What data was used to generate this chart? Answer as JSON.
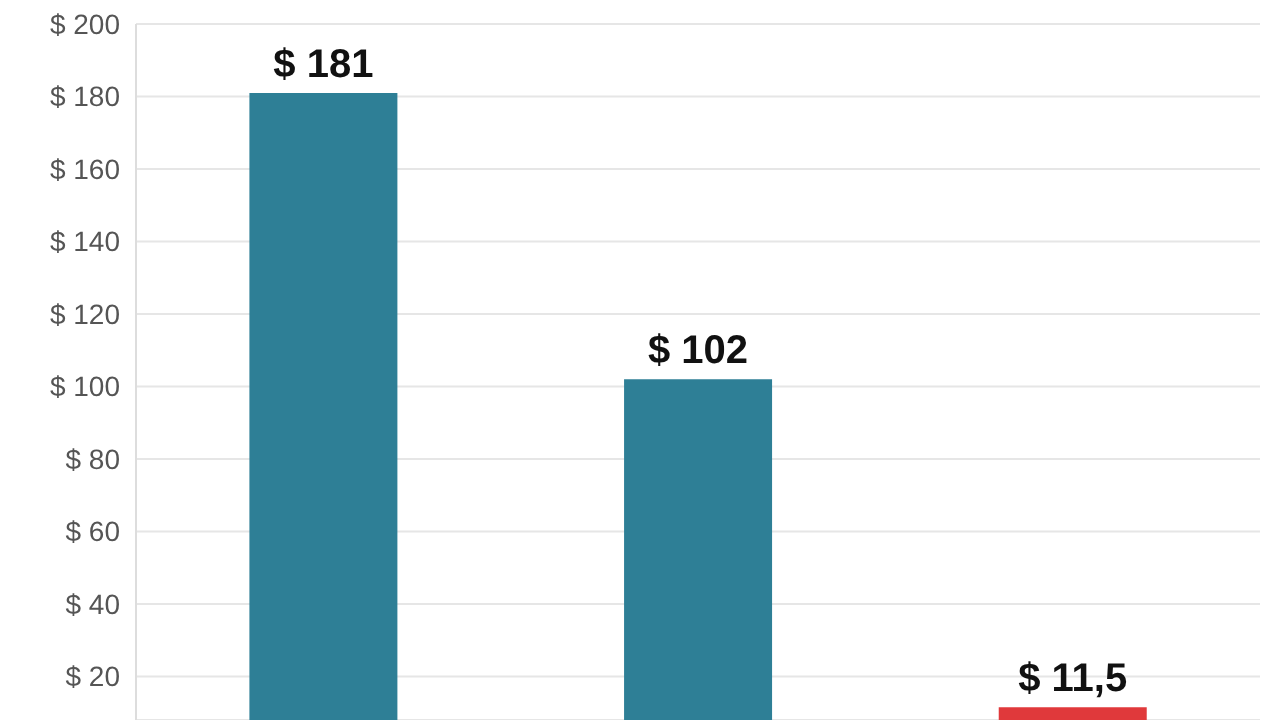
{
  "chart_data": {
    "type": "bar",
    "categories": [
      null,
      null,
      null
    ],
    "values": [
      181,
      102,
      11.5
    ],
    "colors": [
      "#2e7f96",
      "#2e7f96",
      "#e0393b"
    ],
    "value_labels": [
      "$ 181",
      "$ 102",
      "$ 11,5"
    ],
    "ylim": [
      8,
      200
    ],
    "yticks": [
      {
        "value": 20,
        "label": "$ 20"
      },
      {
        "value": 40,
        "label": "$ 40"
      },
      {
        "value": 60,
        "label": "$ 60"
      },
      {
        "value": 80,
        "label": "$ 80"
      },
      {
        "value": 100,
        "label": "$ 100"
      },
      {
        "value": 120,
        "label": "$ 120"
      },
      {
        "value": 140,
        "label": "$ 140"
      },
      {
        "value": 160,
        "label": "$ 160"
      },
      {
        "value": 180,
        "label": "$ 180"
      },
      {
        "value": 200,
        "label": "$ 200"
      }
    ],
    "grid": "y"
  }
}
